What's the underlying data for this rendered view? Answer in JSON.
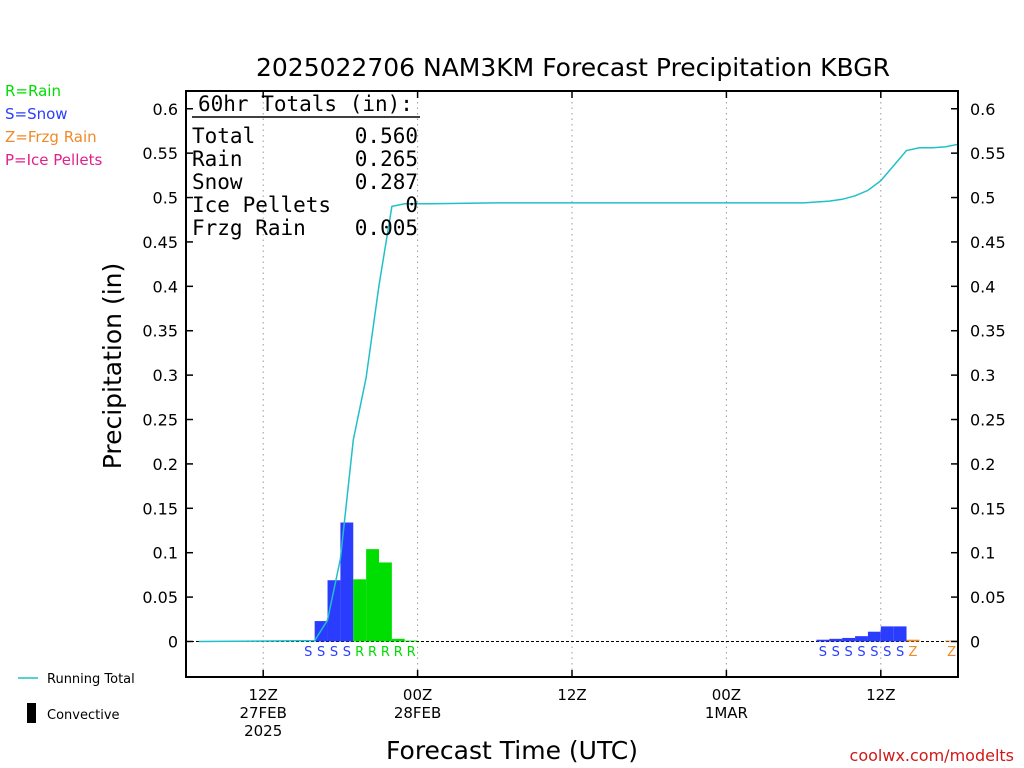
{
  "chart_data": {
    "type": "bar",
    "title": "2025022706 NAM3KM Forecast Precipitation KBGR",
    "xlabel": "Forecast Time (UTC)",
    "ylabel": "Precipitation (in)",
    "ylim": [
      -0.04,
      0.62
    ],
    "y_ticks": [
      "0",
      "0.05",
      "0.1",
      "0.15",
      "0.2",
      "0.25",
      "0.3",
      "0.35",
      "0.4",
      "0.45",
      "0.5",
      "0.55",
      "0.6"
    ],
    "xlim_hours": [
      6,
      66
    ],
    "x_ticks": [
      {
        "hour": 12,
        "line1": "12Z",
        "line2": "27FEB",
        "line3": "2025"
      },
      {
        "hour": 24,
        "line1": "00Z",
        "line2": "28FEB",
        "line3": ""
      },
      {
        "hour": 36,
        "line1": "12Z",
        "line2": "",
        "line3": ""
      },
      {
        "hour": 48,
        "line1": "00Z",
        "line2": "1MAR",
        "line3": ""
      },
      {
        "hour": 60,
        "line1": "12Z",
        "line2": "",
        "line3": ""
      }
    ],
    "grid": "vertical dotted at tick hours",
    "legend_position": "left",
    "legend": [
      {
        "label": "R=Rain",
        "color": "#00dd00"
      },
      {
        "label": "S=Snow",
        "color": "#2a3dff"
      },
      {
        "label": "Z=Frzg Rain",
        "color": "#ee8a2a"
      },
      {
        "label": "P=Ice Pellets",
        "color": "#e0208c"
      }
    ],
    "bottom_legend": {
      "line_label": "Running Total",
      "bar_label": "Convective"
    },
    "totals": {
      "header": "60hr Totals (in):",
      "rows": [
        {
          "label": "Total",
          "value": "0.560"
        },
        {
          "label": "Rain",
          "value": "0.265"
        },
        {
          "label": "Snow",
          "value": "0.287"
        },
        {
          "label": "Ice Pellets",
          "value": "0"
        },
        {
          "label": "Frzg Rain",
          "value": "0.005"
        }
      ]
    },
    "bars": [
      {
        "hour": 16,
        "value": 0.001,
        "type": "S"
      },
      {
        "hour": 17,
        "value": 0.023,
        "type": "S"
      },
      {
        "hour": 18,
        "value": 0.069,
        "type": "S"
      },
      {
        "hour": 19,
        "value": 0.134,
        "type": "S"
      },
      {
        "hour": 20,
        "value": 0.07,
        "type": "R"
      },
      {
        "hour": 21,
        "value": 0.104,
        "type": "R"
      },
      {
        "hour": 22,
        "value": 0.089,
        "type": "R"
      },
      {
        "hour": 23,
        "value": 0.003,
        "type": "R"
      },
      {
        "hour": 24,
        "value": 0.001,
        "type": "R"
      },
      {
        "hour": 56,
        "value": 0.002,
        "type": "S"
      },
      {
        "hour": 57,
        "value": 0.003,
        "type": "S"
      },
      {
        "hour": 58,
        "value": 0.004,
        "type": "S"
      },
      {
        "hour": 59,
        "value": 0.006,
        "type": "S"
      },
      {
        "hour": 60,
        "value": 0.011,
        "type": "S"
      },
      {
        "hour": 61,
        "value": 0.017,
        "type": "S"
      },
      {
        "hour": 62,
        "value": 0.017,
        "type": "S"
      },
      {
        "hour": 63,
        "value": 0.002,
        "type": "Z"
      },
      {
        "hour": 66,
        "value": 0.001,
        "type": "Z"
      }
    ],
    "running_total": {
      "name": "Running Total",
      "color": "#20c0c8",
      "x": [
        7,
        16,
        17,
        18,
        19,
        20,
        21,
        22,
        23,
        25,
        30,
        40,
        50,
        54,
        56,
        57,
        58,
        59,
        60,
        61,
        62,
        63,
        64,
        65,
        66
      ],
      "y": [
        0,
        0.001,
        0.024,
        0.093,
        0.227,
        0.297,
        0.401,
        0.49,
        0.493,
        0.493,
        0.494,
        0.494,
        0.494,
        0.494,
        0.496,
        0.498,
        0.502,
        0.508,
        0.519,
        0.536,
        0.553,
        0.556,
        0.556,
        0.557,
        0.56
      ]
    },
    "colors": {
      "R": "#00dd00",
      "S": "#2a3dff",
      "Z": "#ee8a2a",
      "P": "#e0208c"
    },
    "credit": "coolwx.com/modelts"
  }
}
